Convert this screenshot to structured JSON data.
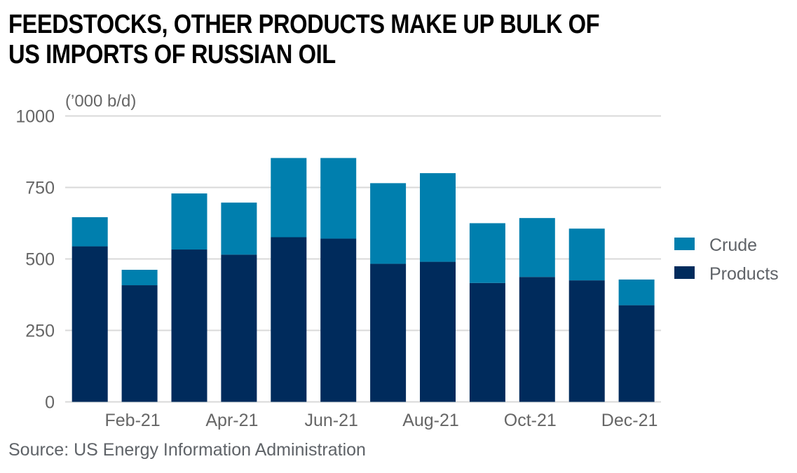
{
  "title_lines": [
    "FEEDSTOCKS, OTHER PRODUCTS MAKE UP BULK OF",
    "US IMPORTS OF RUSSIAN OIL"
  ],
  "source": "Source: US Energy Information Administration",
  "colors": {
    "crude": "#007fae",
    "products": "#002b5c",
    "grid": "#d9d9d9",
    "text": "#666666"
  },
  "chart_data": {
    "type": "bar",
    "stacked": true,
    "title": "FEEDSTOCKS, OTHER PRODUCTS MAKE UP BULK OF US IMPORTS OF RUSSIAN OIL",
    "ylabel": "('000 b/d)",
    "unit_label": "(’000 b/d)",
    "xlabel": "",
    "ylim": [
      0,
      1000
    ],
    "yticks": [
      0,
      250,
      500,
      750,
      1000
    ],
    "ytick_labels": [
      "0",
      "250",
      "500",
      "750",
      "1000"
    ],
    "grid": true,
    "legend_position": "right",
    "categories": [
      "Jan-21",
      "Feb-21",
      "Mar-21",
      "Apr-21",
      "May-21",
      "Jun-21",
      "Jul-21",
      "Aug-21",
      "Sep-21",
      "Oct-21",
      "Nov-21",
      "Dec-21"
    ],
    "xtick_labels": [
      "",
      "Feb-21",
      "",
      "Apr-21",
      "",
      "Jun-21",
      "",
      "Aug-21",
      "",
      "Oct-21",
      "",
      "Dec-21"
    ],
    "series": [
      {
        "name": "Products",
        "color": "#002b5c",
        "values": [
          544,
          408,
          533,
          515,
          576,
          571,
          483,
          490,
          416,
          437,
          425,
          338
        ]
      },
      {
        "name": "Crude",
        "color": "#007fae",
        "values": [
          102,
          54,
          196,
          182,
          277,
          282,
          282,
          310,
          209,
          206,
          181,
          90
        ]
      }
    ],
    "legend": [
      "Crude",
      "Products"
    ]
  }
}
